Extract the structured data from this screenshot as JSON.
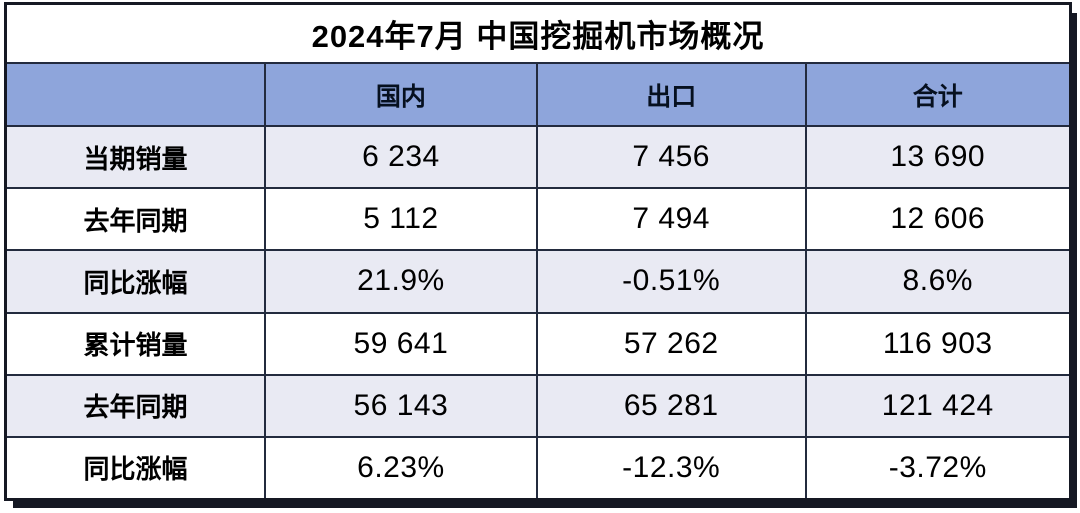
{
  "title": "2024年7月 中国挖掘机市场概况",
  "colors": {
    "header_bg": "#8ea5db",
    "stripe_bg": "#e9eaf3",
    "border_inner": "#232b3e",
    "border_outer": "#151823"
  },
  "chart_data": {
    "type": "table",
    "title": "2024年7月 中国挖掘机市场概况",
    "columns": [
      "",
      "国内",
      "出口",
      "合计"
    ],
    "rows": [
      {
        "label": "当期销量",
        "values": [
          "6 234",
          "7 456",
          "13 690"
        ]
      },
      {
        "label": "去年同期",
        "values": [
          "5 112",
          "7 494",
          "12 606"
        ]
      },
      {
        "label": "同比涨幅",
        "values": [
          "21.9%",
          "-0.51%",
          "8.6%"
        ]
      },
      {
        "label": "累计销量",
        "values": [
          "59 641",
          "57 262",
          "116 903"
        ]
      },
      {
        "label": "去年同期",
        "values": [
          "56 143",
          "65 281",
          "121 424"
        ]
      },
      {
        "label": "同比涨幅",
        "values": [
          "6.23%",
          "-12.3%",
          "-3.72%"
        ]
      }
    ]
  }
}
